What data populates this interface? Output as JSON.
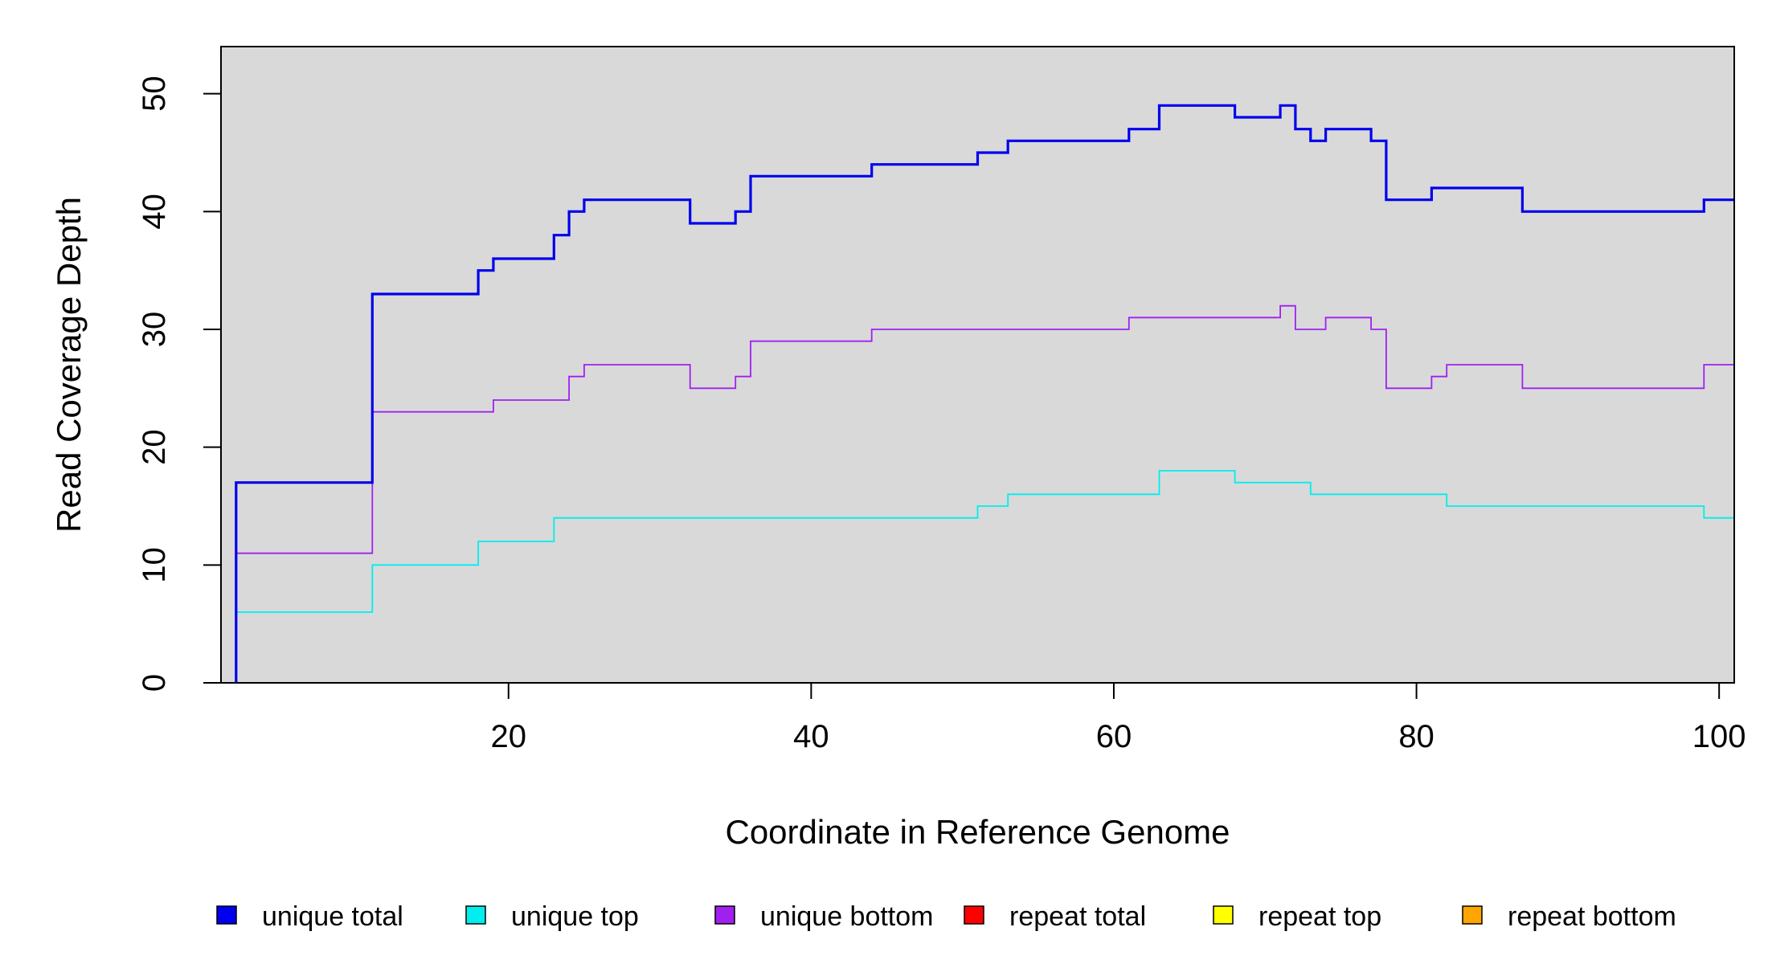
{
  "chart_data": {
    "type": "line",
    "style": "step",
    "xlabel": "Coordinate in Reference Genome",
    "ylabel": "Read Coverage Depth",
    "xlim": [
      1,
      101
    ],
    "ylim": [
      0,
      54
    ],
    "x_ticks": [
      20,
      40,
      60,
      80,
      100
    ],
    "y_ticks": [
      0,
      10,
      20,
      30,
      40,
      50
    ],
    "background": "#d9d9d9",
    "grid": false,
    "legend_position": "bottom",
    "series": [
      {
        "name": "unique total",
        "color": "#0000ee",
        "points": [
          [
            2,
            0
          ],
          [
            2,
            17
          ],
          [
            11,
            17
          ],
          [
            11,
            33
          ],
          [
            18,
            33
          ],
          [
            18,
            35
          ],
          [
            19,
            35
          ],
          [
            19,
            36
          ],
          [
            23,
            36
          ],
          [
            23,
            38
          ],
          [
            24,
            38
          ],
          [
            24,
            40
          ],
          [
            25,
            40
          ],
          [
            25,
            41
          ],
          [
            32,
            41
          ],
          [
            32,
            39
          ],
          [
            35,
            39
          ],
          [
            35,
            40
          ],
          [
            36,
            40
          ],
          [
            36,
            43
          ],
          [
            44,
            43
          ],
          [
            44,
            44
          ],
          [
            51,
            44
          ],
          [
            51,
            45
          ],
          [
            53,
            45
          ],
          [
            53,
            46
          ],
          [
            61,
            46
          ],
          [
            61,
            47
          ],
          [
            63,
            47
          ],
          [
            63,
            49
          ],
          [
            68,
            49
          ],
          [
            68,
            48
          ],
          [
            71,
            48
          ],
          [
            71,
            49
          ],
          [
            72,
            49
          ],
          [
            72,
            47
          ],
          [
            73,
            47
          ],
          [
            73,
            46
          ],
          [
            74,
            46
          ],
          [
            74,
            47
          ],
          [
            77,
            47
          ],
          [
            77,
            46
          ],
          [
            78,
            46
          ],
          [
            78,
            41
          ],
          [
            81,
            41
          ],
          [
            81,
            42
          ],
          [
            87,
            42
          ],
          [
            87,
            40
          ],
          [
            99,
            40
          ],
          [
            99,
            41
          ],
          [
            101,
            41
          ]
        ]
      },
      {
        "name": "unique top",
        "color": "#00eeee",
        "points": [
          [
            2,
            0
          ],
          [
            2,
            6
          ],
          [
            11,
            6
          ],
          [
            11,
            10
          ],
          [
            18,
            10
          ],
          [
            18,
            12
          ],
          [
            23,
            12
          ],
          [
            23,
            14
          ],
          [
            51,
            14
          ],
          [
            51,
            15
          ],
          [
            53,
            15
          ],
          [
            53,
            16
          ],
          [
            63,
            16
          ],
          [
            63,
            18
          ],
          [
            68,
            18
          ],
          [
            68,
            17
          ],
          [
            73,
            17
          ],
          [
            73,
            16
          ],
          [
            82,
            16
          ],
          [
            82,
            15
          ],
          [
            99,
            15
          ],
          [
            99,
            14
          ],
          [
            101,
            14
          ]
        ]
      },
      {
        "name": "unique bottom",
        "color": "#a020f0",
        "points": [
          [
            2,
            0
          ],
          [
            2,
            11
          ],
          [
            11,
            11
          ],
          [
            11,
            23
          ],
          [
            19,
            23
          ],
          [
            19,
            24
          ],
          [
            24,
            24
          ],
          [
            24,
            26
          ],
          [
            25,
            26
          ],
          [
            25,
            27
          ],
          [
            32,
            27
          ],
          [
            32,
            25
          ],
          [
            35,
            25
          ],
          [
            35,
            26
          ],
          [
            36,
            26
          ],
          [
            36,
            29
          ],
          [
            44,
            29
          ],
          [
            44,
            30
          ],
          [
            61,
            30
          ],
          [
            61,
            31
          ],
          [
            71,
            31
          ],
          [
            71,
            32
          ],
          [
            72,
            32
          ],
          [
            72,
            30
          ],
          [
            74,
            30
          ],
          [
            74,
            31
          ],
          [
            77,
            31
          ],
          [
            77,
            30
          ],
          [
            78,
            30
          ],
          [
            78,
            25
          ],
          [
            81,
            25
          ],
          [
            81,
            26
          ],
          [
            82,
            26
          ],
          [
            82,
            27
          ],
          [
            87,
            27
          ],
          [
            87,
            25
          ],
          [
            99,
            25
          ],
          [
            99,
            27
          ],
          [
            101,
            27
          ]
        ]
      },
      {
        "name": "repeat total",
        "color": "#ff0000",
        "points": [
          [
            2,
            0
          ],
          [
            101,
            0
          ]
        ]
      },
      {
        "name": "repeat top",
        "color": "#ffff00",
        "points": [
          [
            2,
            0
          ],
          [
            101,
            0
          ]
        ]
      },
      {
        "name": "repeat bottom",
        "color": "#ffa500",
        "points": [
          [
            2,
            0
          ],
          [
            101,
            0
          ]
        ]
      }
    ]
  }
}
